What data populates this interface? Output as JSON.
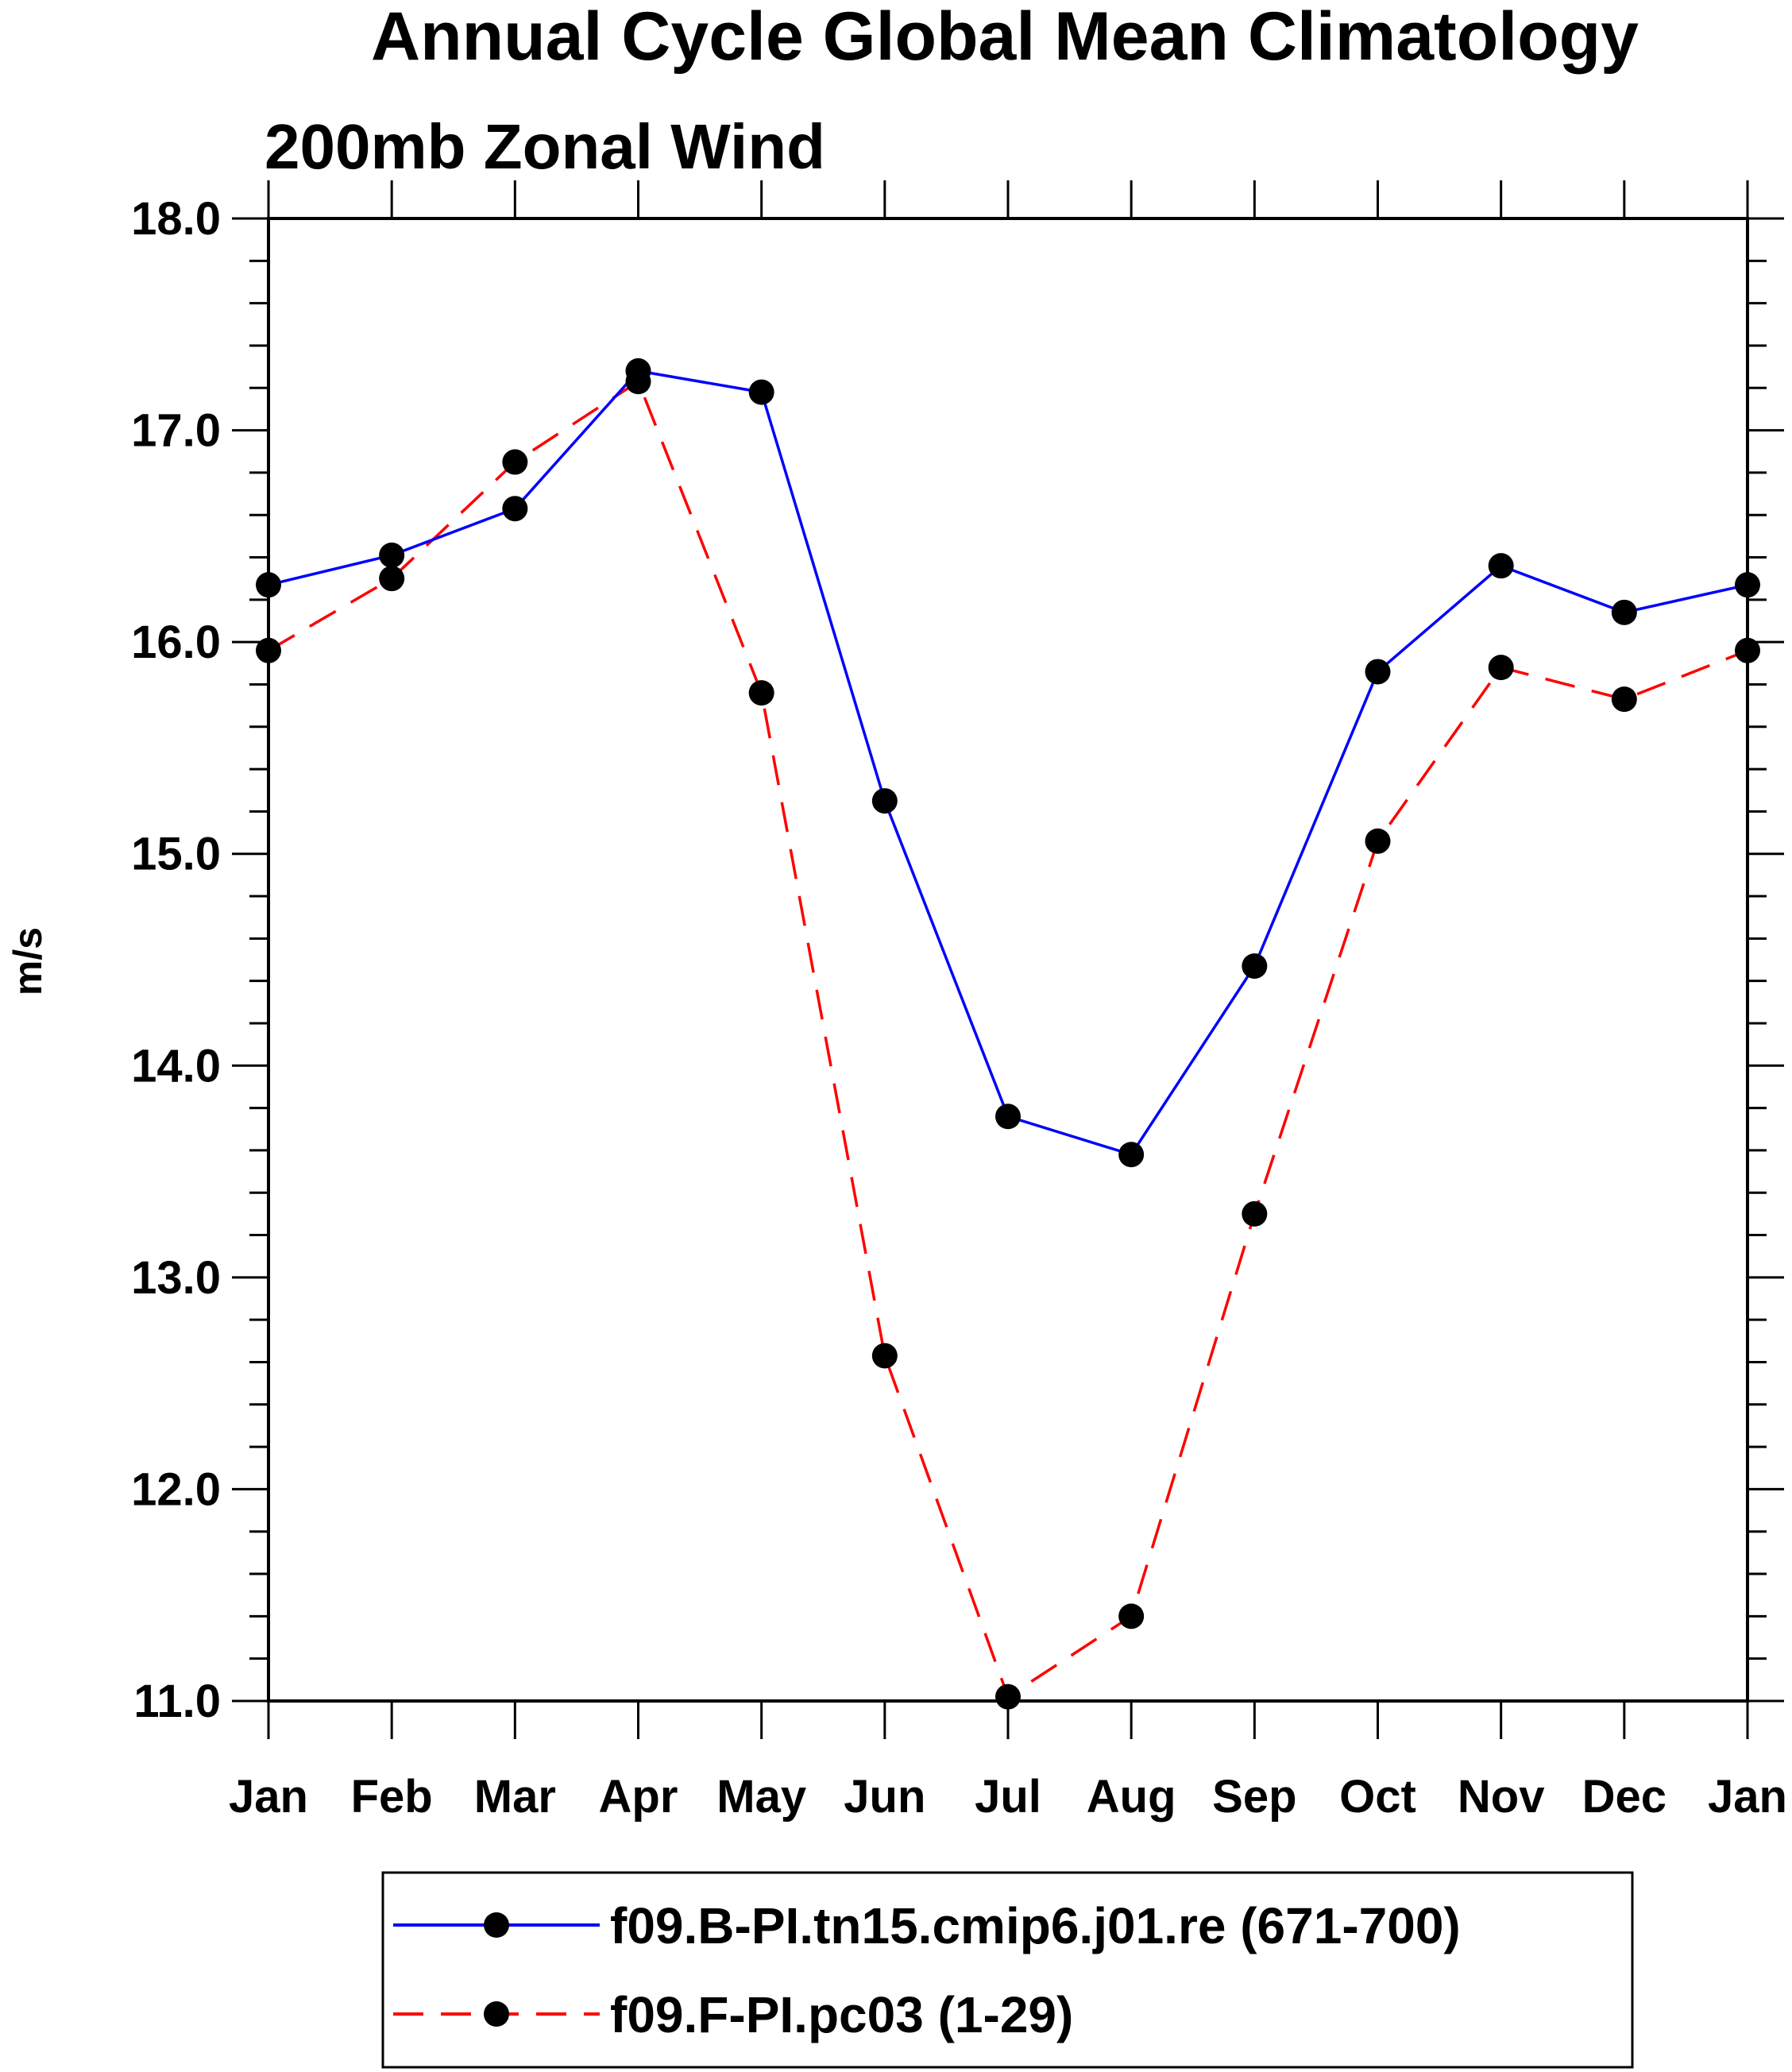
{
  "chart_data": {
    "type": "line",
    "title": "Annual Cycle Global Mean Climatology",
    "subtitle": "200mb Zonal Wind",
    "xlabel": "",
    "ylabel": "m/s",
    "categories": [
      "Jan",
      "Feb",
      "Mar",
      "Apr",
      "May",
      "Jun",
      "Jul",
      "Aug",
      "Sep",
      "Oct",
      "Nov",
      "Dec",
      "Jan"
    ],
    "ylim": [
      11.0,
      18.0
    ],
    "yticks": [
      "11.0",
      "12.0",
      "13.0",
      "14.0",
      "15.0",
      "16.0",
      "17.0",
      "18.0"
    ],
    "grid": false,
    "legend_position": "bottom",
    "series": [
      {
        "name": "f09.B-PI.tn15.cmip6.j01.re (671-700)",
        "color": "#0000ff",
        "style": "solid",
        "marker": "filled-circle",
        "values": [
          16.27,
          16.41,
          16.63,
          17.28,
          17.18,
          15.25,
          13.76,
          13.58,
          14.47,
          15.86,
          16.36,
          16.14,
          16.27
        ]
      },
      {
        "name": "f09.F-PI.pc03 (1-29)",
        "color": "#ff0000",
        "style": "dashed",
        "marker": "filled-circle",
        "values": [
          15.96,
          16.3,
          16.85,
          17.23,
          15.76,
          12.63,
          11.02,
          11.4,
          13.3,
          15.06,
          15.88,
          15.73,
          15.96
        ]
      }
    ]
  }
}
